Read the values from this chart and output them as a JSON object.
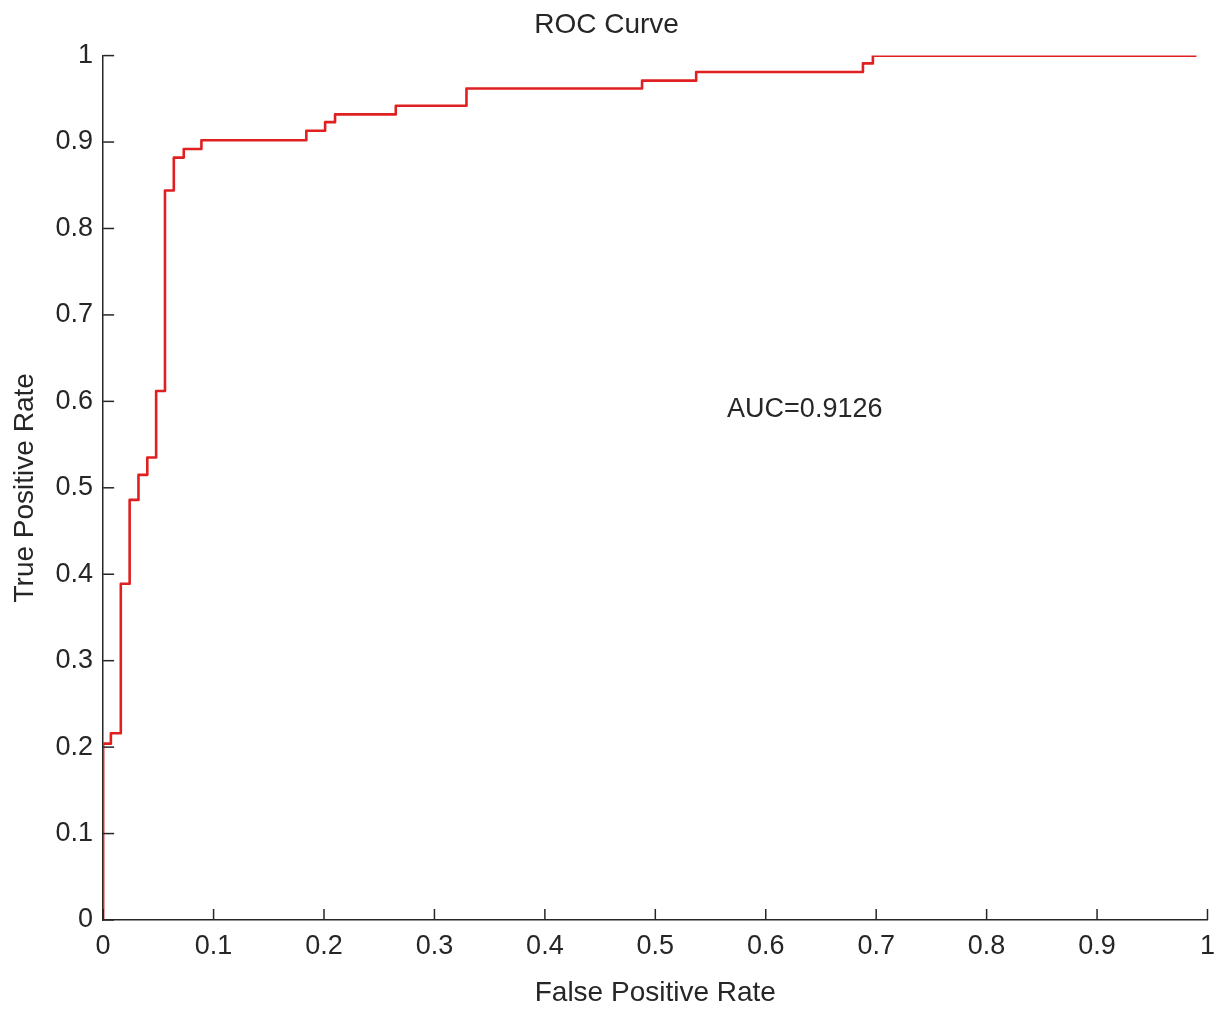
{
  "chart_data": {
    "type": "step",
    "title": "ROC Curve",
    "xlabel": "False Positive Rate",
    "ylabel": "True Positive Rate",
    "x": [
      0,
      0,
      0.007,
      0.016,
      0.024,
      0.032,
      0.04,
      0.048,
      0.056,
      0.064,
      0.073,
      0.089,
      0.184,
      0.201,
      0.21,
      0.265,
      0.329,
      0.488,
      0.537,
      0.688,
      0.697,
      0.99
    ],
    "series": [
      {
        "color": "#e02020",
        "values": [
          0,
          0.204,
          0.216,
          0.389,
          0.486,
          0.515,
          0.535,
          0.612,
          0.844,
          0.882,
          0.892,
          0.902,
          0.913,
          0.923,
          0.932,
          0.942,
          0.962,
          0.971,
          0.981,
          0.991,
          1.0,
          1.0
        ]
      }
    ],
    "xlim": [
      0,
      1
    ],
    "xticks": [
      0,
      0.1,
      0.2,
      0.3,
      0.4,
      0.5,
      0.6,
      0.7,
      0.8,
      0.9,
      1
    ],
    "ylim": [
      0,
      1
    ],
    "yticks": [
      0,
      0.1,
      0.2,
      0.3,
      0.4,
      0.5,
      0.6,
      0.7,
      0.8,
      0.9,
      1
    ],
    "annotations": [
      "AUC=0.9126"
    ],
    "grid": false,
    "legend": false
  }
}
